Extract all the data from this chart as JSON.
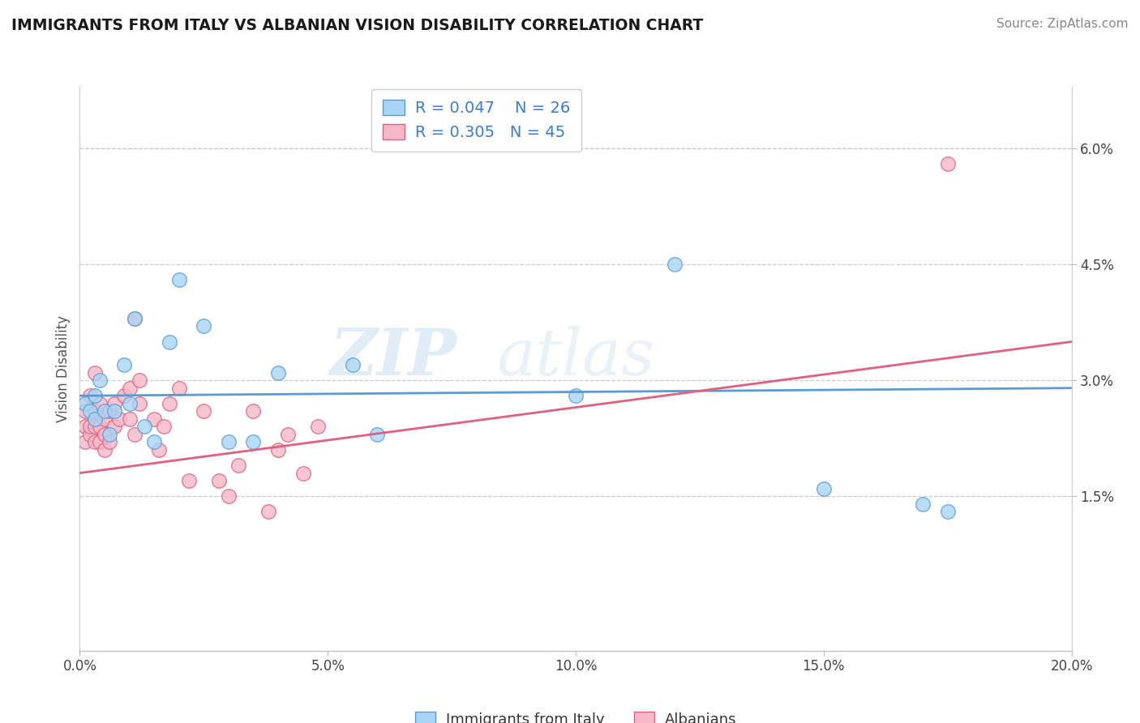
{
  "title": "IMMIGRANTS FROM ITALY VS ALBANIAN VISION DISABILITY CORRELATION CHART",
  "source": "Source: ZipAtlas.com",
  "ylabel": "Vision Disability",
  "xlim": [
    0.0,
    0.2
  ],
  "ylim_display": [
    0.0,
    0.065
  ],
  "ylim_actual": [
    -0.005,
    0.068
  ],
  "xtick_labels": [
    "0.0%",
    "5.0%",
    "10.0%",
    "15.0%",
    "20.0%"
  ],
  "xtick_vals": [
    0.0,
    0.05,
    0.1,
    0.15,
    0.2
  ],
  "ytick_labels": [
    "1.5%",
    "3.0%",
    "4.5%",
    "6.0%"
  ],
  "ytick_vals": [
    0.015,
    0.03,
    0.045,
    0.06
  ],
  "italy_R": 0.047,
  "italy_N": 26,
  "albania_R": 0.305,
  "albania_N": 45,
  "italy_color": "#a8d4f5",
  "albania_color": "#f5b8c8",
  "italy_line_color": "#5b9bd5",
  "albania_line_color": "#e06080",
  "watermark_zip": "ZIP",
  "watermark_atlas": "atlas",
  "italy_points": [
    [
      0.001,
      0.027
    ],
    [
      0.002,
      0.026
    ],
    [
      0.003,
      0.025
    ],
    [
      0.003,
      0.028
    ],
    [
      0.004,
      0.03
    ],
    [
      0.005,
      0.026
    ],
    [
      0.006,
      0.023
    ],
    [
      0.007,
      0.026
    ],
    [
      0.009,
      0.032
    ],
    [
      0.01,
      0.027
    ],
    [
      0.011,
      0.038
    ],
    [
      0.013,
      0.024
    ],
    [
      0.015,
      0.022
    ],
    [
      0.018,
      0.035
    ],
    [
      0.02,
      0.043
    ],
    [
      0.025,
      0.037
    ],
    [
      0.03,
      0.022
    ],
    [
      0.035,
      0.022
    ],
    [
      0.04,
      0.031
    ],
    [
      0.055,
      0.032
    ],
    [
      0.06,
      0.023
    ],
    [
      0.1,
      0.028
    ],
    [
      0.12,
      0.045
    ],
    [
      0.15,
      0.016
    ],
    [
      0.17,
      0.014
    ],
    [
      0.175,
      0.013
    ]
  ],
  "albania_points": [
    [
      0.001,
      0.024
    ],
    [
      0.001,
      0.026
    ],
    [
      0.001,
      0.022
    ],
    [
      0.002,
      0.023
    ],
    [
      0.002,
      0.024
    ],
    [
      0.002,
      0.028
    ],
    [
      0.003,
      0.022
    ],
    [
      0.003,
      0.024
    ],
    [
      0.003,
      0.026
    ],
    [
      0.003,
      0.031
    ],
    [
      0.004,
      0.022
    ],
    [
      0.004,
      0.024
    ],
    [
      0.004,
      0.027
    ],
    [
      0.005,
      0.021
    ],
    [
      0.005,
      0.023
    ],
    [
      0.005,
      0.025
    ],
    [
      0.006,
      0.022
    ],
    [
      0.006,
      0.026
    ],
    [
      0.007,
      0.024
    ],
    [
      0.007,
      0.027
    ],
    [
      0.008,
      0.025
    ],
    [
      0.009,
      0.028
    ],
    [
      0.01,
      0.025
    ],
    [
      0.01,
      0.029
    ],
    [
      0.011,
      0.023
    ],
    [
      0.011,
      0.038
    ],
    [
      0.012,
      0.027
    ],
    [
      0.012,
      0.03
    ],
    [
      0.015,
      0.025
    ],
    [
      0.016,
      0.021
    ],
    [
      0.017,
      0.024
    ],
    [
      0.018,
      0.027
    ],
    [
      0.02,
      0.029
    ],
    [
      0.022,
      0.017
    ],
    [
      0.025,
      0.026
    ],
    [
      0.028,
      0.017
    ],
    [
      0.03,
      0.015
    ],
    [
      0.032,
      0.019
    ],
    [
      0.035,
      0.026
    ],
    [
      0.038,
      0.013
    ],
    [
      0.04,
      0.021
    ],
    [
      0.042,
      0.023
    ],
    [
      0.045,
      0.018
    ],
    [
      0.048,
      0.024
    ],
    [
      0.175,
      0.058
    ]
  ],
  "italy_trend": [
    0.0,
    0.028,
    0.2,
    0.029
  ],
  "albania_trend": [
    0.0,
    0.018,
    0.2,
    0.035
  ]
}
